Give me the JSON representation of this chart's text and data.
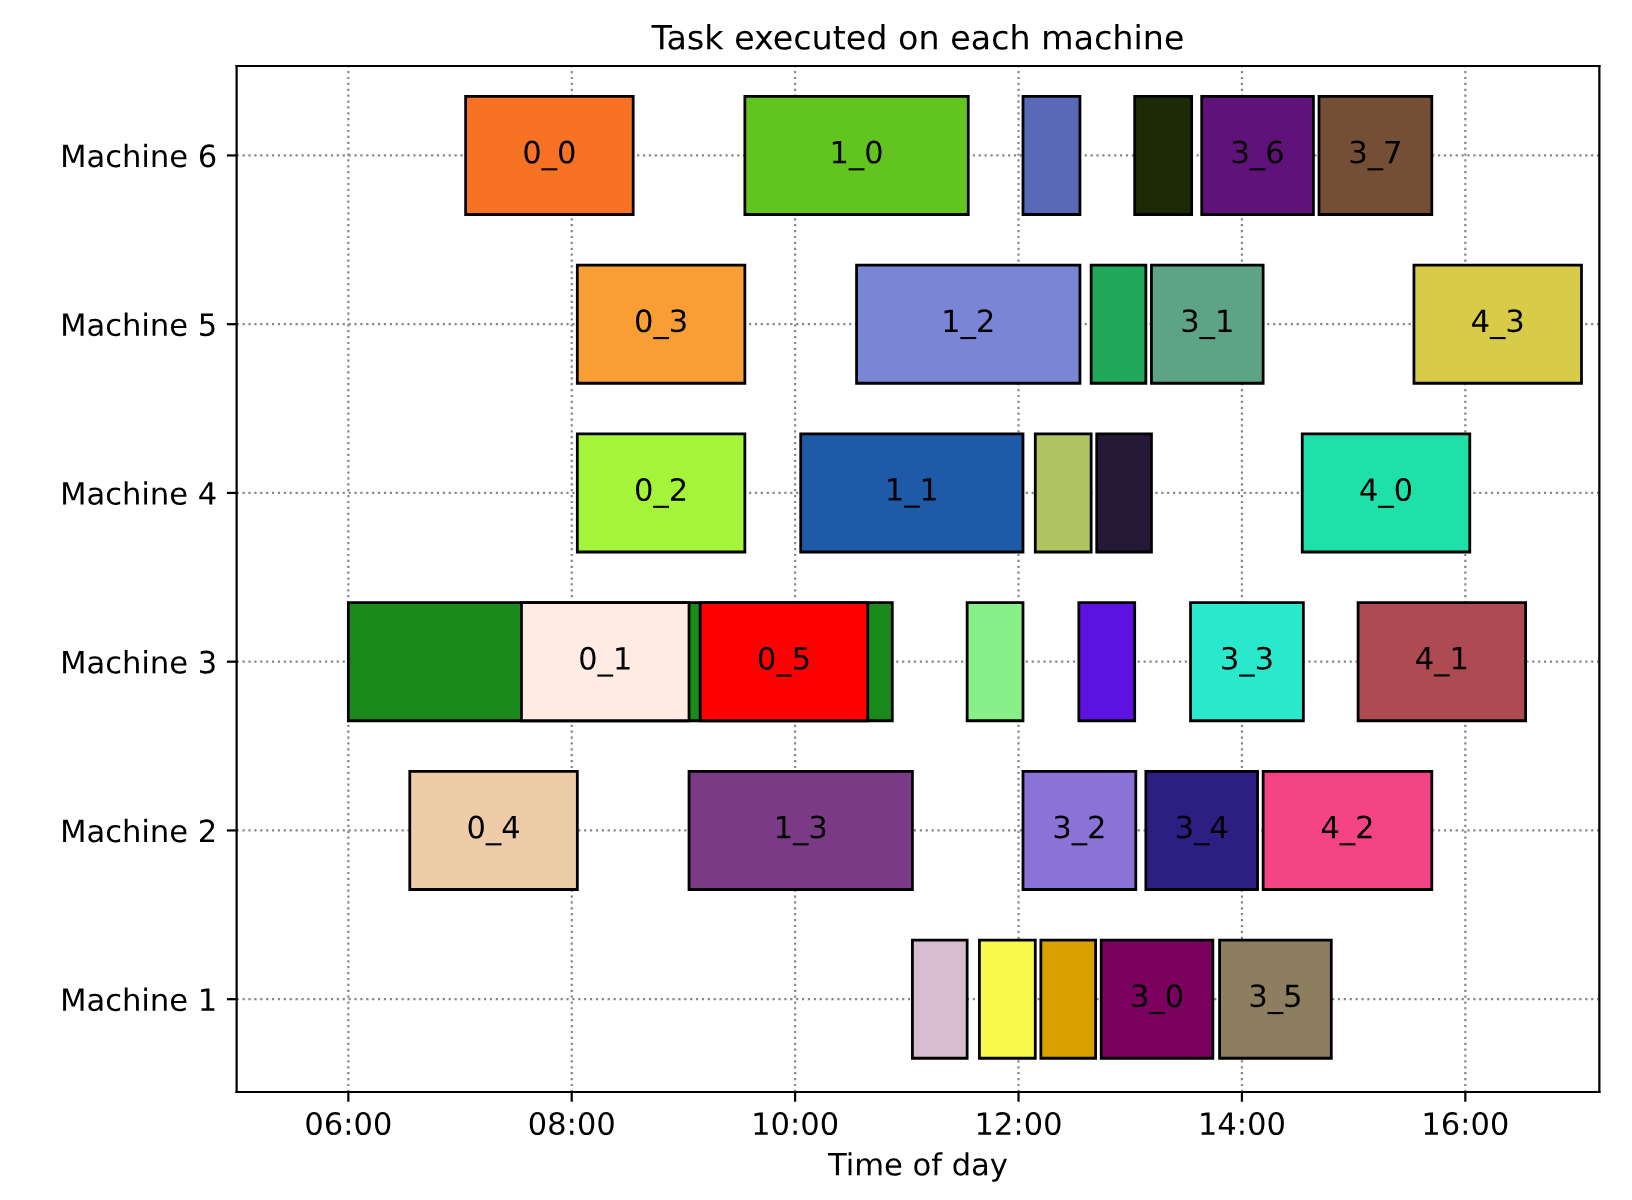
{
  "chart_data": {
    "type": "bar",
    "orientation": "horizontal",
    "title": "Task executed on each machine",
    "xlabel": "Time of day",
    "categories": [
      "Machine 6",
      "Machine 5",
      "Machine 4",
      "Machine 3",
      "Machine 2",
      "Machine 1"
    ],
    "xlim": [
      5,
      17.2
    ],
    "xticks": [
      {
        "value": 6,
        "label": "06:00"
      },
      {
        "value": 8,
        "label": "08:00"
      },
      {
        "value": 10,
        "label": "10:00"
      },
      {
        "value": 12,
        "label": "12:00"
      },
      {
        "value": 14,
        "label": "14:00"
      },
      {
        "value": 16,
        "label": "16:00"
      }
    ],
    "grid": true,
    "line_style": "dotted",
    "series": [
      {
        "color": "#1a8a1a",
        "values": [
          null,
          null,
          null,
          4.87,
          null,
          null
        ],
        "base": [
          null,
          null,
          null,
          6.0,
          null,
          null
        ]
      },
      {
        "name": "0_0",
        "color": "#f87224",
        "values": [
          1.5,
          null,
          null,
          null,
          null,
          null
        ],
        "base": [
          7.05,
          null,
          null,
          null,
          null,
          null
        ]
      },
      {
        "name": "1_0",
        "color": "#62c41e",
        "values": [
          2.0,
          null,
          null,
          null,
          null,
          null
        ],
        "base": [
          9.55,
          null,
          null,
          null,
          null,
          null
        ]
      },
      {
        "color": "#5a68b8",
        "values": [
          0.51,
          null,
          null,
          null,
          null,
          null
        ],
        "base": [
          12.04,
          null,
          null,
          null,
          null,
          null
        ]
      },
      {
        "color": "#1d2a08",
        "values": [
          0.51,
          null,
          null,
          null,
          null,
          null
        ],
        "base": [
          13.04,
          null,
          null,
          null,
          null,
          null
        ]
      },
      {
        "name": "3_6",
        "color": "#5f137a",
        "values": [
          1.0,
          null,
          null,
          null,
          null,
          null
        ],
        "base": [
          13.64,
          null,
          null,
          null,
          null,
          null
        ]
      },
      {
        "name": "3_7",
        "color": "#744e35",
        "values": [
          1.01,
          null,
          null,
          null,
          null,
          null
        ],
        "base": [
          14.69,
          null,
          null,
          null,
          null,
          null
        ]
      },
      {
        "name": "0_3",
        "color": "#f89e34",
        "values": [
          null,
          1.5,
          null,
          null,
          null,
          null
        ],
        "base": [
          null,
          8.05,
          null,
          null,
          null,
          null
        ]
      },
      {
        "name": "1_2",
        "color": "#7b85d6",
        "values": [
          null,
          2.0,
          null,
          null,
          null,
          null
        ],
        "base": [
          null,
          10.55,
          null,
          null,
          null,
          null
        ]
      },
      {
        "color": "#22a85a",
        "values": [
          null,
          0.49,
          null,
          null,
          null,
          null
        ],
        "base": [
          null,
          12.65,
          null,
          null,
          null,
          null
        ]
      },
      {
        "name": "3_1",
        "color": "#5da386",
        "values": [
          null,
          1.0,
          null,
          null,
          null,
          null
        ],
        "base": [
          null,
          13.19,
          null,
          null,
          null,
          null
        ]
      },
      {
        "name": "4_3",
        "color": "#d8cb48",
        "values": [
          null,
          1.5,
          null,
          null,
          null,
          null
        ],
        "base": [
          null,
          15.54,
          null,
          null,
          null,
          null
        ]
      },
      {
        "name": "0_2",
        "color": "#a4f53a",
        "values": [
          null,
          null,
          1.5,
          null,
          null,
          null
        ],
        "base": [
          null,
          null,
          8.05,
          null,
          null,
          null
        ]
      },
      {
        "name": "1_1",
        "color": "#1f5aa8",
        "values": [
          null,
          null,
          1.99,
          null,
          null,
          null
        ],
        "base": [
          null,
          null,
          10.05,
          null,
          null,
          null
        ]
      },
      {
        "color": "#b0c462",
        "values": [
          null,
          null,
          0.5,
          null,
          null,
          null
        ],
        "base": [
          null,
          null,
          12.15,
          null,
          null,
          null
        ]
      },
      {
        "color": "#241a38",
        "values": [
          null,
          null,
          0.49,
          null,
          null,
          null
        ],
        "base": [
          null,
          null,
          12.7,
          null,
          null,
          null
        ]
      },
      {
        "name": "4_0",
        "color": "#1ee0a8",
        "values": [
          null,
          null,
          1.5,
          null,
          null,
          null
        ],
        "base": [
          null,
          null,
          14.54,
          null,
          null,
          null
        ]
      },
      {
        "name": "0_1",
        "color": "#fdebe4",
        "values": [
          null,
          null,
          null,
          1.5,
          null,
          null
        ],
        "base": [
          null,
          null,
          null,
          7.55,
          null,
          null
        ]
      },
      {
        "name": "0_5",
        "color": "#fe0000",
        "values": [
          null,
          null,
          null,
          1.5,
          null,
          null
        ],
        "base": [
          null,
          null,
          null,
          9.15,
          null,
          null
        ]
      },
      {
        "color": "#88f088",
        "values": [
          null,
          null,
          null,
          0.5,
          null,
          null
        ],
        "base": [
          null,
          null,
          null,
          11.54,
          null,
          null
        ]
      },
      {
        "color": "#5c12e0",
        "values": [
          null,
          null,
          null,
          0.5,
          null,
          null
        ],
        "base": [
          null,
          null,
          null,
          12.54,
          null,
          null
        ]
      },
      {
        "name": "3_3",
        "color": "#2ae8cc",
        "values": [
          null,
          null,
          null,
          1.01,
          null,
          null
        ],
        "base": [
          null,
          null,
          null,
          13.54,
          null,
          null
        ]
      },
      {
        "name": "4_1",
        "color": "#ae4a52",
        "values": [
          null,
          null,
          null,
          1.5,
          null,
          null
        ],
        "base": [
          null,
          null,
          null,
          15.04,
          null,
          null
        ]
      },
      {
        "name": "0_4",
        "color": "#efcca8",
        "values": [
          null,
          null,
          null,
          null,
          1.5,
          null
        ],
        "base": [
          null,
          null,
          null,
          null,
          6.55,
          null
        ]
      },
      {
        "name": "1_3",
        "color": "#7a3a86",
        "values": [
          null,
          null,
          null,
          null,
          2.0,
          null
        ],
        "base": [
          null,
          null,
          null,
          null,
          9.05,
          null
        ]
      },
      {
        "name": "3_2",
        "color": "#8a72d6",
        "values": [
          null,
          null,
          null,
          null,
          1.01,
          null
        ],
        "base": [
          null,
          null,
          null,
          null,
          12.04,
          null
        ]
      },
      {
        "name": "3_4",
        "color": "#2c1e82",
        "values": [
          null,
          null,
          null,
          null,
          1.0,
          null
        ],
        "base": [
          null,
          null,
          null,
          null,
          13.14,
          null
        ]
      },
      {
        "name": "4_2",
        "color": "#f44484",
        "values": [
          null,
          null,
          null,
          null,
          1.51,
          null
        ],
        "base": [
          null,
          null,
          null,
          null,
          14.19,
          null
        ]
      },
      {
        "color": "#d8bcd0",
        "values": [
          null,
          null,
          null,
          null,
          null,
          0.49
        ],
        "base": [
          null,
          null,
          null,
          null,
          null,
          11.05
        ]
      },
      {
        "color": "#f8f84a",
        "values": [
          null,
          null,
          null,
          null,
          null,
          0.5
        ],
        "base": [
          null,
          null,
          null,
          null,
          null,
          11.65
        ]
      },
      {
        "color": "#daa000",
        "values": [
          null,
          null,
          null,
          null,
          null,
          0.49
        ],
        "base": [
          null,
          null,
          null,
          null,
          null,
          12.2
        ]
      },
      {
        "name": "3_0",
        "color": "#7c0060",
        "values": [
          null,
          null,
          null,
          null,
          null,
          1.0
        ],
        "base": [
          null,
          null,
          null,
          null,
          null,
          12.74
        ]
      },
      {
        "name": "3_5",
        "color": "#8c7e5e",
        "values": [
          null,
          null,
          null,
          null,
          null,
          1.0
        ],
        "base": [
          null,
          null,
          null,
          null,
          null,
          13.8
        ]
      }
    ]
  }
}
